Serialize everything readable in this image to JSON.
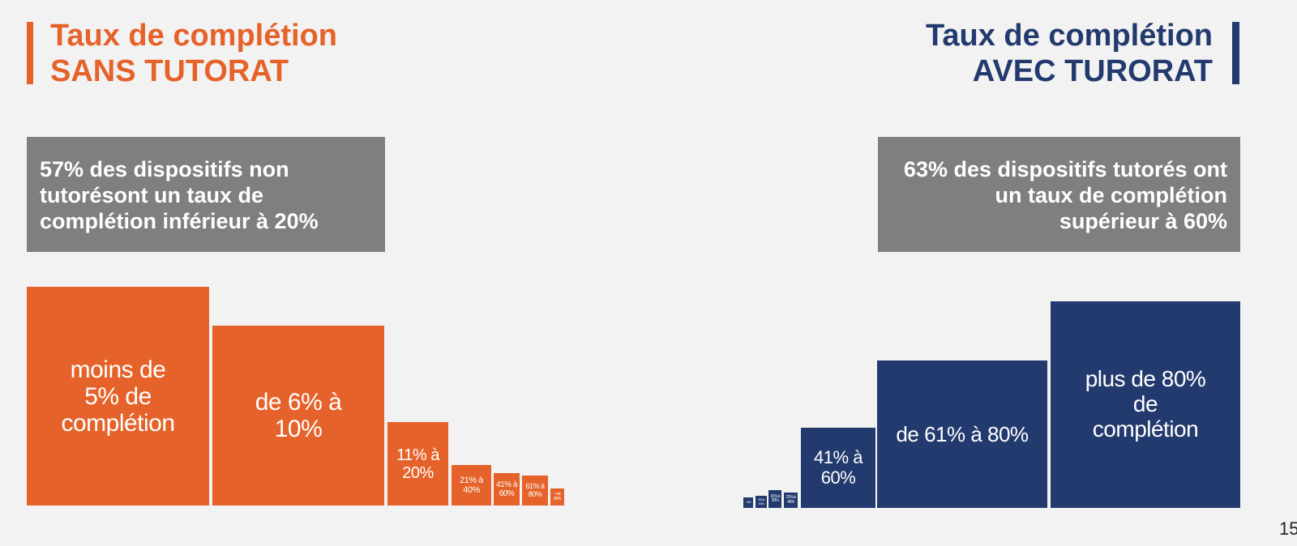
{
  "left": {
    "title_line1": "Taux de complétion",
    "title_line2": "SANS TUTORAT",
    "callout": "57% des dispositifs non tutorésont un taux de complétion inférieur à 20%",
    "blocks": [
      "moins de 5% de complétion",
      "de 6% à 10%",
      "11% à 20%",
      "21% à 40%",
      "41% à 60%",
      "61% à 80%",
      "+ de 80%"
    ]
  },
  "right": {
    "title_line1": "Taux de complétion",
    "title_line2": "AVEC TURORAT",
    "callout": "63% des dispositifs tutorés ont un taux de complétion supérieur à 60%",
    "blocks": [
      "- 5%",
      "6% à 10%",
      "11% à 20%",
      "21% à 40%",
      "41% à 60%",
      "de 61% à 80%",
      "plus de 80% de complétion"
    ]
  },
  "page_number": "15"
}
